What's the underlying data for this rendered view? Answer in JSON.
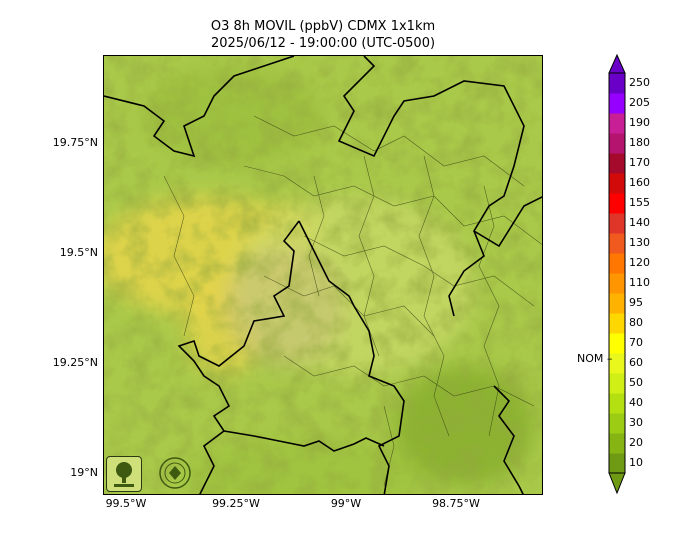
{
  "title": {
    "line1": "O3 8h MOVIL (ppbV) CDMX 1x1km",
    "line2": "2025/06/12 - 19:00:00 (UTC-0500)"
  },
  "axes": {
    "lat_labels": [
      "19.75°N",
      "19.5°N",
      "19.25°N",
      "19°N"
    ],
    "lon_labels": [
      "99.5°W",
      "99.25°W",
      "99°W",
      "98.75°W"
    ]
  },
  "colorbar": {
    "levels": [
      "10",
      "20",
      "30",
      "40",
      "50",
      "60",
      "70",
      "80",
      "95",
      "110",
      "120",
      "130",
      "140",
      "155",
      "160",
      "170",
      "180",
      "190",
      "205",
      "250"
    ],
    "colors": [
      "#6e9a14",
      "#86b413",
      "#9ccd14",
      "#b4e012",
      "#cfef16",
      "#e9f71c",
      "#ffff00",
      "#ffd700",
      "#ffb300",
      "#ff9500",
      "#ff7700",
      "#f05a1e",
      "#e0362a",
      "#ff0000",
      "#d20a0a",
      "#a50a2c",
      "#b4146e",
      "#c81e96",
      "#9600ff",
      "#6a00c8"
    ],
    "nom_label": "NOM"
  },
  "map": {
    "base_color": "#a9c94a",
    "plume_color": "#e2d24a",
    "icons": [
      "sedema-logo-icon",
      "cdmx-seal-icon"
    ]
  }
}
